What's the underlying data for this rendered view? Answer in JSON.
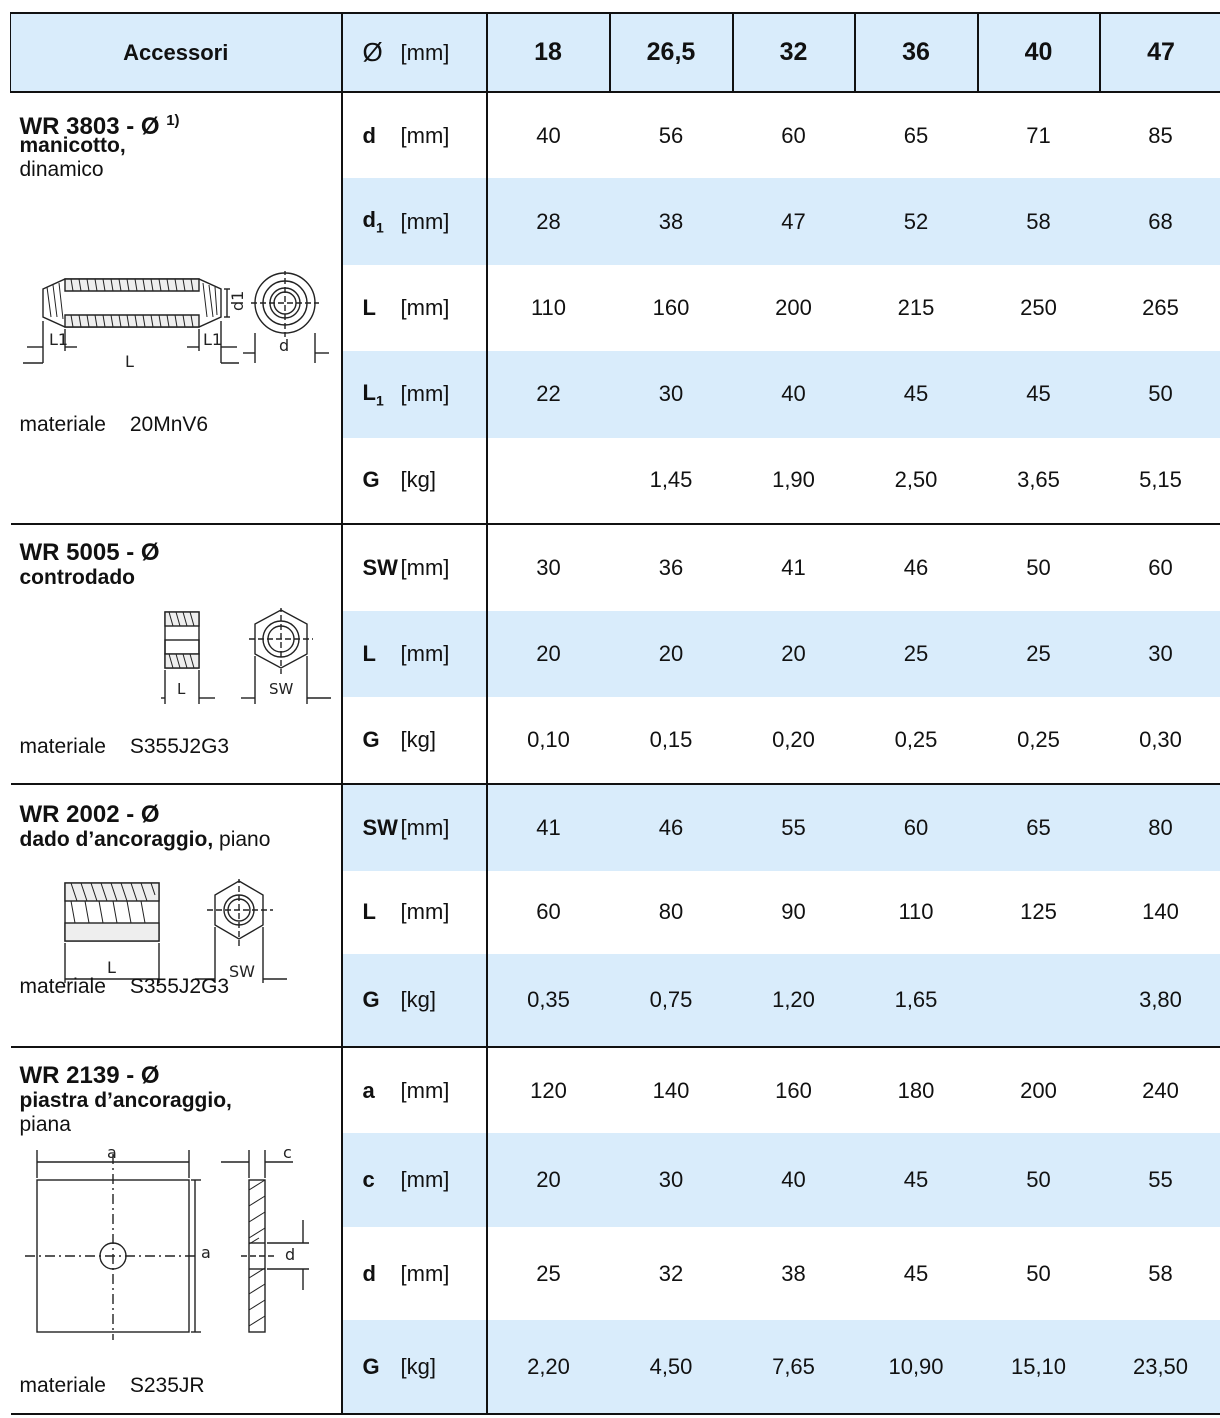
{
  "header": {
    "title": "Accessori",
    "diameter_symbol": "Ø",
    "unit": "[mm]",
    "sizes": [
      "18",
      "26,5",
      "32",
      "36",
      "40",
      "47"
    ]
  },
  "groups": [
    {
      "code": "WR 3803 - Ø",
      "sup": "1)",
      "name": "manicotto,",
      "subtitle": "dinamico",
      "material_label": "materiale",
      "material": "20MnV6",
      "rows": [
        {
          "symbol": "d",
          "sub": "",
          "unit": "[mm]",
          "values": [
            "40",
            "56",
            "60",
            "65",
            "71",
            "85"
          ]
        },
        {
          "symbol": "d",
          "sub": "1",
          "unit": "[mm]",
          "values": [
            "28",
            "38",
            "47",
            "52",
            "58",
            "68"
          ]
        },
        {
          "symbol": "L",
          "sub": "",
          "unit": "[mm]",
          "values": [
            "110",
            "160",
            "200",
            "215",
            "250",
            "265"
          ]
        },
        {
          "symbol": "L",
          "sub": "1",
          "unit": "[mm]",
          "values": [
            "22",
            "30",
            "40",
            "45",
            "45",
            "50"
          ]
        },
        {
          "symbol": "G",
          "sub": "",
          "unit": "[kg]",
          "values": [
            "",
            "1,45",
            "1,90",
            "2,50",
            "3,65",
            "5,15"
          ]
        }
      ]
    },
    {
      "code": "WR 5005 - Ø",
      "name": "controdado",
      "material_label": "materiale",
      "material": "S355J2G3",
      "rows": [
        {
          "symbol": "SW",
          "sub": "",
          "unit": "[mm]",
          "values": [
            "30",
            "36",
            "41",
            "46",
            "50",
            "60"
          ]
        },
        {
          "symbol": "L",
          "sub": "",
          "unit": "[mm]",
          "values": [
            "20",
            "20",
            "20",
            "25",
            "25",
            "30"
          ]
        },
        {
          "symbol": "G",
          "sub": "",
          "unit": "[kg]",
          "values": [
            "0,10",
            "0,15",
            "0,20",
            "0,25",
            "0,25",
            "0,30"
          ]
        }
      ]
    },
    {
      "code": "WR 2002 - Ø",
      "name": "dado d’ancoraggio,",
      "subtitle": "piano",
      "material_label": "materiale",
      "material": "S355J2G3",
      "rows": [
        {
          "symbol": "SW",
          "sub": "",
          "unit": "[mm]",
          "values": [
            "41",
            "46",
            "55",
            "60",
            "65",
            "80"
          ]
        },
        {
          "symbol": "L",
          "sub": "",
          "unit": "[mm]",
          "values": [
            "60",
            "80",
            "90",
            "110",
            "125",
            "140"
          ]
        },
        {
          "symbol": "G",
          "sub": "",
          "unit": "[kg]",
          "values": [
            "0,35",
            "0,75",
            "1,20",
            "1,65",
            "",
            "3,80"
          ]
        }
      ]
    },
    {
      "code": "WR 2139 - Ø",
      "name": "piastra d’ancoraggio,",
      "subtitle": "piana",
      "material_label": "materiale",
      "material": "S235JR",
      "rows": [
        {
          "symbol": "a",
          "sub": "",
          "unit": "[mm]",
          "values": [
            "120",
            "140",
            "160",
            "180",
            "200",
            "240"
          ]
        },
        {
          "symbol": "c",
          "sub": "",
          "unit": "[mm]",
          "values": [
            "20",
            "30",
            "40",
            "45",
            "50",
            "55"
          ]
        },
        {
          "symbol": "d",
          "sub": "",
          "unit": "[mm]",
          "values": [
            "25",
            "32",
            "38",
            "45",
            "50",
            "58"
          ]
        },
        {
          "symbol": "G",
          "sub": "",
          "unit": "[kg]",
          "values": [
            "2,20",
            "4,50",
            "7,65",
            "10,90",
            "15,10",
            "23,50"
          ]
        }
      ]
    }
  ],
  "drawing_labels": {
    "coupler": {
      "d1": "d1",
      "L1": "L1",
      "L": "L",
      "d": "d"
    },
    "locknut": {
      "L": "L",
      "SW": "SW"
    },
    "anchor_nut": {
      "L": "L",
      "SW": "SW"
    },
    "plate": {
      "a": "a",
      "c": "c",
      "d": "d"
    }
  }
}
